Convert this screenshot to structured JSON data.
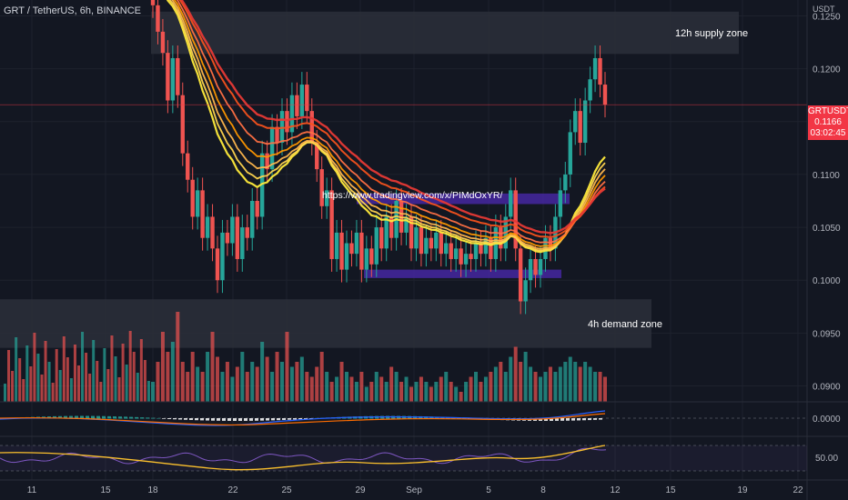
{
  "header": {
    "title": "GRT / TetherUS, 6h, BINANCE"
  },
  "price_axis": {
    "unit": "USDT",
    "ticks": [
      "0.1250",
      "0.1200",
      "0.1150",
      "0.1100",
      "0.1050",
      "0.1000",
      "0.0950",
      "0.0900"
    ]
  },
  "macd_axis": {
    "ticks": [
      "0.0000"
    ]
  },
  "rsi_axis": {
    "ticks": [
      "50.00"
    ]
  },
  "time_axis": {
    "ticks": [
      "11",
      "15",
      "18",
      "22",
      "25",
      "29",
      "Sep",
      "5",
      "8",
      "12",
      "15",
      "19",
      "22"
    ]
  },
  "price_tag": {
    "symbol": "GRTUSDT",
    "price": "0.1166",
    "countdown": "03:02:45"
  },
  "annotations": {
    "supply_zone": "12h supply zone",
    "demand_zone": "4h demand zone",
    "link": "https://www.tradingview.com/x/PIMdOxYR/"
  },
  "colors": {
    "bull": "#26a69a",
    "bear": "#ef5350",
    "zone": "#2a2e39",
    "purple_box": "#4527a0"
  },
  "chart_data": {
    "type": "candlestick",
    "symbol": "GRT / TetherUS",
    "interval": "6h",
    "exchange": "BINANCE",
    "ylim": [
      0.0885,
      0.1265
    ],
    "last_price": 0.1166,
    "closes": [
      0.126,
      0.1235,
      0.1215,
      0.117,
      0.121,
      0.1175,
      0.112,
      0.1095,
      0.106,
      0.1085,
      0.104,
      0.106,
      0.103,
      0.1,
      0.1045,
      0.1035,
      0.106,
      0.102,
      0.105,
      0.104,
      0.1075,
      0.106,
      0.112,
      0.1105,
      0.1145,
      0.113,
      0.116,
      0.114,
      0.1175,
      0.1155,
      0.1185,
      0.116,
      0.113,
      0.1105,
      0.107,
      0.1085,
      0.102,
      0.1045,
      0.101,
      0.1035,
      0.1025,
      0.1045,
      0.101,
      0.103,
      0.1015,
      0.105,
      0.103,
      0.106,
      0.104,
      0.1075,
      0.1045,
      0.106,
      0.103,
      0.105,
      0.1025,
      0.104,
      0.103,
      0.1045,
      0.1025,
      0.1035,
      0.102,
      0.103,
      0.1015,
      0.1025,
      0.102,
      0.1035,
      0.1025,
      0.104,
      0.102,
      0.105,
      0.103,
      0.106,
      0.1085,
      0.103,
      0.098,
      0.1,
      0.102,
      0.1005,
      0.102,
      0.104,
      0.103,
      0.106,
      0.1085,
      0.11,
      0.114,
      0.116,
      0.113,
      0.117,
      0.119,
      0.121,
      0.1185,
      0.1166
    ],
    "volumes": [
      0.2,
      0.4,
      0.7,
      0.5,
      0.6,
      0.9,
      0.4,
      0.3,
      0.5,
      0.35,
      0.3,
      0.5,
      0.7,
      0.45,
      0.3,
      0.4,
      0.25,
      0.35,
      0.5,
      0.3,
      0.4,
      0.35,
      0.6,
      0.45,
      0.3,
      0.5,
      0.4,
      0.7,
      0.35,
      0.4,
      0.45,
      0.3,
      0.25,
      0.35,
      0.5,
      0.3,
      0.2,
      0.25,
      0.4,
      0.3,
      0.25,
      0.2,
      0.3,
      0.15,
      0.2,
      0.3,
      0.25,
      0.2,
      0.35,
      0.3,
      0.2,
      0.25,
      0.15,
      0.2,
      0.25,
      0.2,
      0.15,
      0.2,
      0.25,
      0.3,
      0.2,
      0.15,
      0.1,
      0.2,
      0.25,
      0.3,
      0.2,
      0.25,
      0.3,
      0.35,
      0.4,
      0.3,
      0.45,
      0.55,
      0.4,
      0.5,
      0.35,
      0.3,
      0.25,
      0.3,
      0.35,
      0.3,
      0.35,
      0.4,
      0.45,
      0.4,
      0.35,
      0.4,
      0.35,
      0.3,
      0.3,
      0.25
    ]
  }
}
